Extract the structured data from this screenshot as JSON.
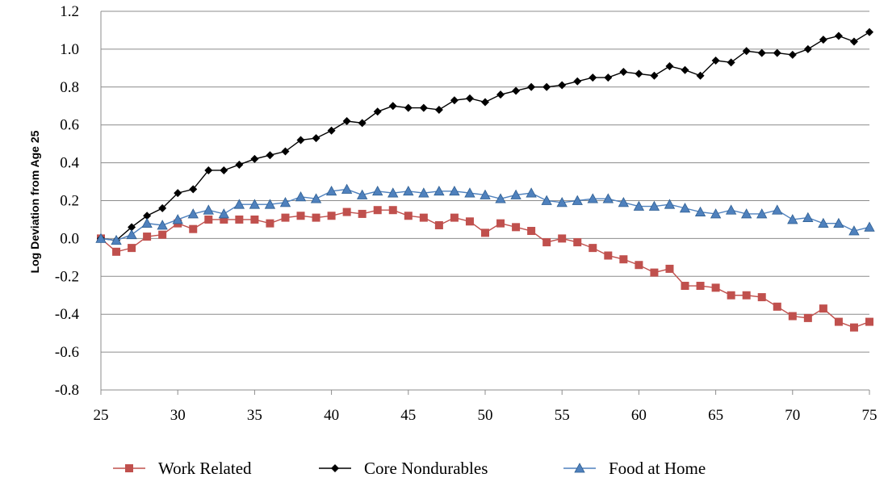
{
  "chart_data": {
    "type": "line",
    "title": "",
    "xlabel": "",
    "ylabel": "Log Deviation from Age 25",
    "xlim": [
      25,
      75
    ],
    "ylim": [
      -0.8,
      1.2
    ],
    "x_ticks": [
      "25",
      "30",
      "35",
      "40",
      "45",
      "50",
      "55",
      "60",
      "65",
      "70",
      "75"
    ],
    "y_ticks": [
      "1.2",
      "1.0",
      "0.8",
      "0.6",
      "0.4",
      "0.2",
      "0.0",
      "-0.2",
      "-0.4",
      "-0.6",
      "-0.8"
    ],
    "grid": "horizontal",
    "legend_position": "bottom",
    "x": [
      25,
      26,
      27,
      28,
      29,
      30,
      31,
      32,
      33,
      34,
      35,
      36,
      37,
      38,
      39,
      40,
      41,
      42,
      43,
      44,
      45,
      46,
      47,
      48,
      49,
      50,
      51,
      52,
      53,
      54,
      55,
      56,
      57,
      58,
      59,
      60,
      61,
      62,
      63,
      64,
      65,
      66,
      67,
      68,
      69,
      70,
      71,
      72,
      73,
      74,
      75
    ],
    "series": [
      {
        "name": "Work Related",
        "color": "#c0504d",
        "marker": "square",
        "values": [
          0.0,
          -0.07,
          -0.05,
          0.01,
          0.02,
          0.08,
          0.05,
          0.1,
          0.1,
          0.1,
          0.1,
          0.08,
          0.11,
          0.12,
          0.11,
          0.12,
          0.14,
          0.13,
          0.15,
          0.15,
          0.12,
          0.11,
          0.07,
          0.11,
          0.09,
          0.03,
          0.08,
          0.06,
          0.04,
          -0.02,
          0.0,
          -0.02,
          -0.05,
          -0.09,
          -0.11,
          -0.14,
          -0.18,
          -0.16,
          -0.25,
          -0.25,
          -0.26,
          -0.3,
          -0.3,
          -0.31,
          -0.36,
          -0.41,
          -0.42,
          -0.37,
          -0.44,
          -0.47,
          -0.44
        ]
      },
      {
        "name": "Core Nondurables",
        "color": "#000000",
        "marker": "diamond",
        "values": [
          0.0,
          -0.01,
          0.06,
          0.12,
          0.16,
          0.24,
          0.26,
          0.36,
          0.36,
          0.39,
          0.42,
          0.44,
          0.46,
          0.52,
          0.53,
          0.57,
          0.62,
          0.61,
          0.67,
          0.7,
          0.69,
          0.69,
          0.68,
          0.73,
          0.74,
          0.72,
          0.76,
          0.78,
          0.8,
          0.8,
          0.81,
          0.83,
          0.85,
          0.85,
          0.88,
          0.87,
          0.86,
          0.91,
          0.89,
          0.86,
          0.94,
          0.93,
          0.99,
          0.98,
          0.98,
          0.97,
          1.0,
          1.05,
          1.07,
          1.04,
          1.09
        ]
      },
      {
        "name": "Food at Home",
        "color": "#4f81bd",
        "marker": "triangle",
        "values": [
          0.0,
          -0.01,
          0.02,
          0.08,
          0.07,
          0.1,
          0.13,
          0.15,
          0.13,
          0.18,
          0.18,
          0.18,
          0.19,
          0.22,
          0.21,
          0.25,
          0.26,
          0.23,
          0.25,
          0.24,
          0.25,
          0.24,
          0.25,
          0.25,
          0.24,
          0.23,
          0.21,
          0.23,
          0.24,
          0.2,
          0.19,
          0.2,
          0.21,
          0.21,
          0.19,
          0.17,
          0.17,
          0.18,
          0.16,
          0.14,
          0.13,
          0.15,
          0.13,
          0.13,
          0.15,
          0.1,
          0.11,
          0.08,
          0.08,
          0.04,
          0.06
        ]
      }
    ]
  }
}
